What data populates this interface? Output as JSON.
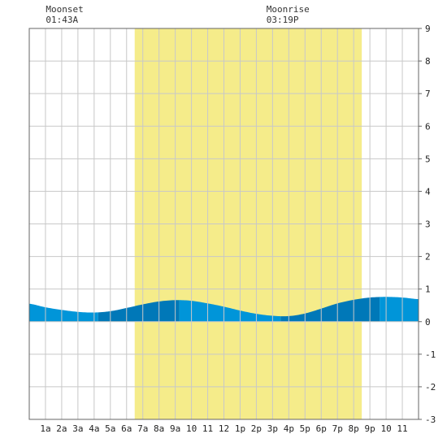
{
  "chart_data": {
    "type": "area",
    "title": "",
    "xlabel": "",
    "ylabel": "",
    "x_unit_hours": true,
    "xlim": [
      0,
      24
    ],
    "ylim": [
      -3,
      9
    ],
    "yticks": [
      -3,
      -2,
      -1,
      0,
      1,
      2,
      3,
      4,
      5,
      6,
      7,
      8,
      9
    ],
    "xtick_hours": [
      1,
      2,
      3,
      4,
      5,
      6,
      7,
      8,
      9,
      10,
      11,
      12,
      13,
      14,
      15,
      16,
      17,
      18,
      19,
      20,
      21,
      22,
      23
    ],
    "xtick_labels": [
      "1a",
      "2a",
      "3a",
      "4a",
      "5a",
      "6a",
      "7a",
      "8a",
      "9a",
      "10",
      "11",
      "12",
      "1p",
      "2p",
      "3p",
      "4p",
      "5p",
      "6p",
      "7p",
      "8p",
      "9p",
      "10",
      "11"
    ],
    "grid": true,
    "daylight": {
      "start_hour": 6.5,
      "end_hour": 20.5
    },
    "tide_series": {
      "name": "",
      "hours": [
        0,
        1,
        2,
        3,
        4,
        5,
        6,
        7,
        8,
        9,
        10,
        11,
        12,
        13,
        14,
        15,
        16,
        17,
        18,
        19,
        20,
        21,
        22,
        23,
        24
      ],
      "heights": [
        0.55,
        0.44,
        0.36,
        0.3,
        0.28,
        0.32,
        0.42,
        0.53,
        0.62,
        0.66,
        0.64,
        0.56,
        0.46,
        0.34,
        0.24,
        0.18,
        0.17,
        0.25,
        0.4,
        0.56,
        0.67,
        0.74,
        0.76,
        0.74,
        0.69
      ]
    },
    "tide_bands_hours": [
      0,
      4.25,
      9.25,
      15.5,
      21.6,
      24
    ],
    "events": [
      {
        "label": "Moonset",
        "time": "01:43A",
        "hour": 1.72
      },
      {
        "label": "Moonrise",
        "time": "03:19P",
        "hour": 15.32
      }
    ],
    "colors": {
      "daylight": "#f5ec8a",
      "tide_light": "#0095d9",
      "tide_dark": "#0078b8",
      "grid": "#c8c8c8",
      "frame": "#666666"
    }
  }
}
